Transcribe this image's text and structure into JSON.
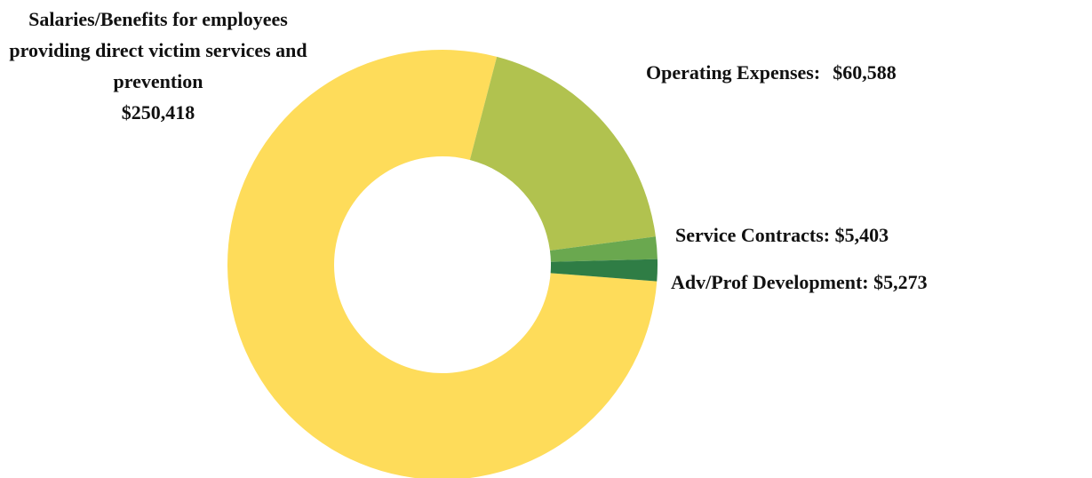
{
  "chart_data": {
    "type": "donut",
    "categories": [
      "Salaries/Benefits for employees providing direct victim services and prevention",
      "Operating Expenses:",
      "Service Contracts:",
      "Adv/Prof Development:"
    ],
    "values": [
      250418,
      60588,
      5403,
      5273
    ],
    "value_labels": [
      "$250,418",
      "$60,588",
      "$5,403",
      "$5,273"
    ],
    "colors": [
      "#fedc5a",
      "#b1c24f",
      "#6aa84f",
      "#2f7d45"
    ]
  }
}
